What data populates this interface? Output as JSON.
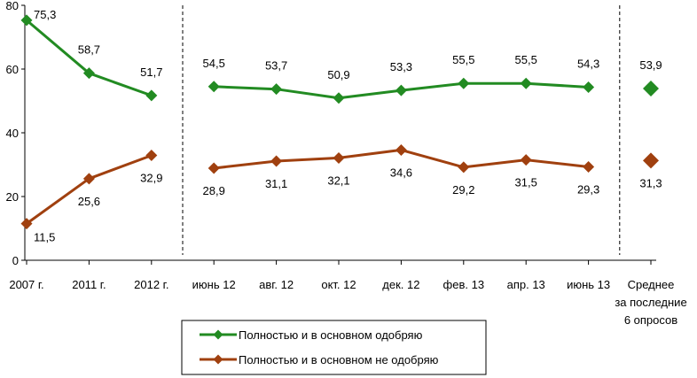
{
  "chart_data": {
    "type": "line",
    "categories": [
      [
        "2007 г."
      ],
      [
        "2011 г."
      ],
      [
        "2012 г."
      ],
      [
        "июнь 12"
      ],
      [
        "авг. 12"
      ],
      [
        "окт. 12"
      ],
      [
        "дек. 12"
      ],
      [
        "фев. 13"
      ],
      [
        "апр. 13"
      ],
      [
        "июнь 13"
      ],
      [
        "Среднее",
        "за последние",
        "6 опросов"
      ]
    ],
    "ylim": [
      0,
      80
    ],
    "yticks": [
      0,
      20,
      40,
      60,
      80
    ],
    "grid": false,
    "legend_position": "bottom-center",
    "dividers_after_categories": [
      2,
      9
    ],
    "series": [
      {
        "name": "Полностью и в основном одобряю",
        "color": "#228B22",
        "values": [
          75.3,
          58.7,
          51.7,
          54.5,
          53.7,
          50.9,
          53.3,
          55.5,
          55.5,
          54.3,
          53.9
        ],
        "labels": [
          "75,3",
          "58,7",
          "51,7",
          "54,5",
          "53,7",
          "50,9",
          "53,3",
          "55,5",
          "55,5",
          "54,3",
          "53,9"
        ],
        "line_segments": [
          [
            0,
            2
          ],
          [
            3,
            9
          ]
        ]
      },
      {
        "name": "Полностью и в основном не одобряю",
        "color": "#A0400F",
        "values": [
          11.5,
          25.6,
          32.9,
          28.9,
          31.1,
          32.1,
          34.6,
          29.2,
          31.5,
          29.3,
          31.3
        ],
        "labels": [
          "11,5",
          "25,6",
          "32,9",
          "28,9",
          "31,1",
          "32,1",
          "34,6",
          "29,2",
          "31,5",
          "29,3",
          "31,3"
        ],
        "line_segments": [
          [
            0,
            2
          ],
          [
            3,
            9
          ]
        ]
      }
    ]
  }
}
